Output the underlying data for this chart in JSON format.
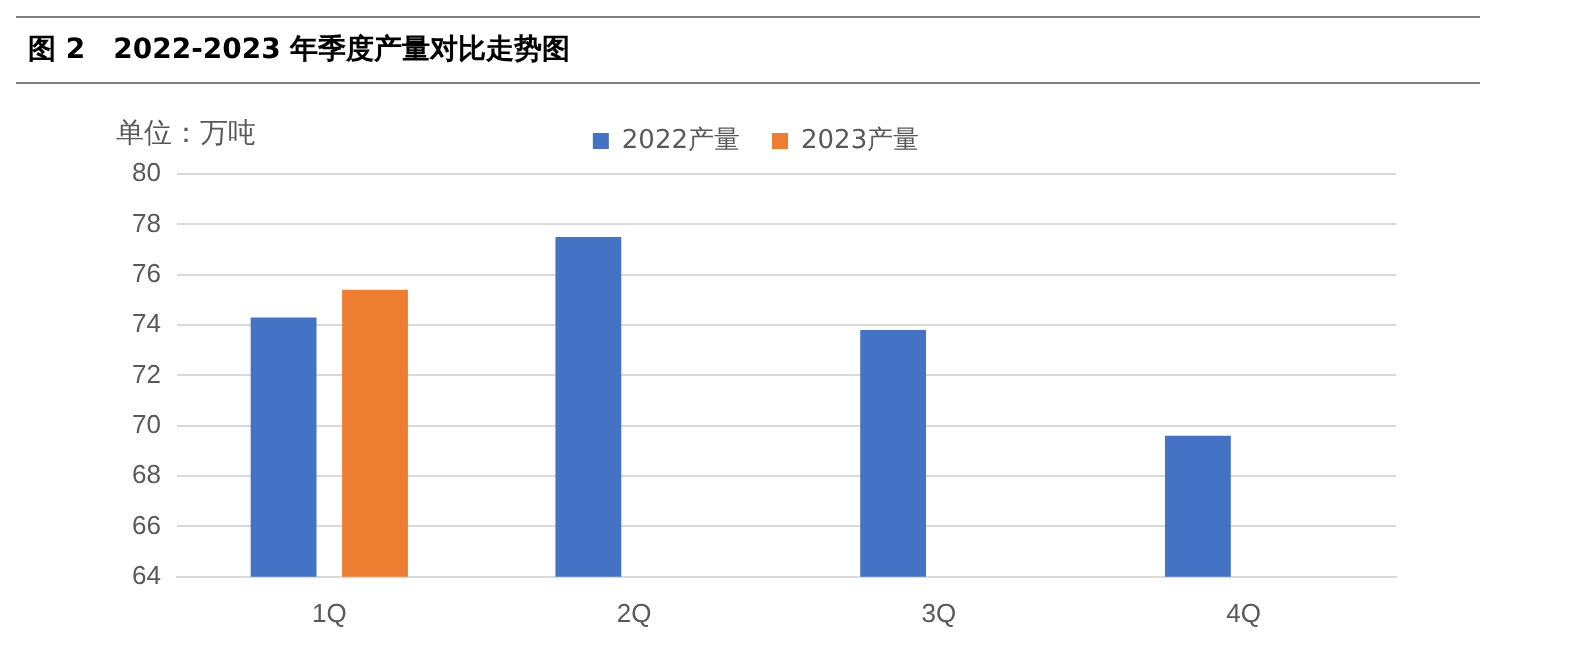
{
  "chart_data": {
    "type": "bar",
    "title": "图 2　2022-2023 年季度产量对比走势图",
    "ylabel": "单位：万吨",
    "categories": [
      "1Q",
      "2Q",
      "3Q",
      "4Q"
    ],
    "series": [
      {
        "name": "2022产量",
        "color": "#4472c4",
        "values": [
          74.3,
          77.5,
          73.8,
          69.6
        ]
      },
      {
        "name": "2023产量",
        "color": "#ed7d31",
        "values": [
          75.4,
          null,
          null,
          null
        ]
      }
    ],
    "ylim": [
      64,
      80
    ],
    "yticks": [
      64,
      66,
      68,
      70,
      72,
      74,
      76,
      78,
      80
    ],
    "grid": "y",
    "legend": "top"
  }
}
